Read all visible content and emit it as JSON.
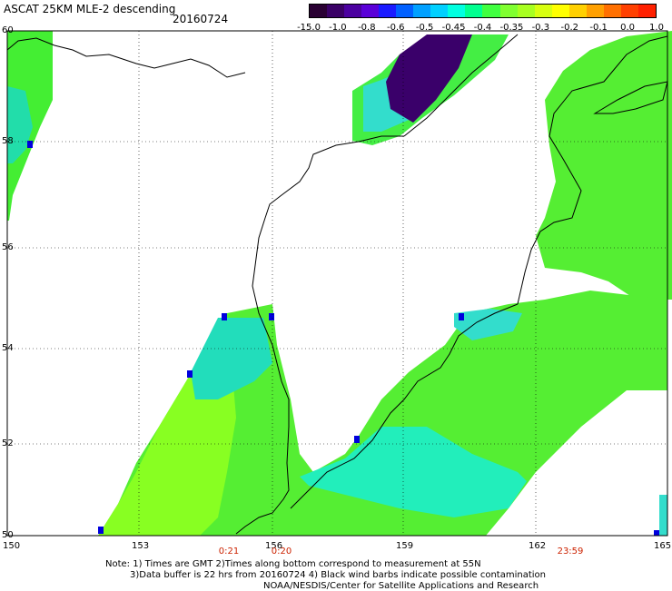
{
  "header": {
    "title": "ASCAT 25KM MLE-2 descending",
    "date": "20160724"
  },
  "colorbar": {
    "colors": [
      "#2a0033",
      "#3a0066",
      "#4b00a0",
      "#5a00d8",
      "#1a1aff",
      "#0060ff",
      "#00a0ff",
      "#00d0ff",
      "#00ffe0",
      "#00ff90",
      "#40ff40",
      "#80ff30",
      "#a8ff20",
      "#d8ff10",
      "#ffff00",
      "#ffd000",
      "#ffa000",
      "#ff7000",
      "#ff4000",
      "#ff2000"
    ],
    "labels": [
      "-15.0",
      "-1.0",
      "-0.8",
      "-0.6",
      "-0.5",
      "-0.45",
      "-0.4",
      "-0.35",
      "-0.3",
      "-0.2",
      "-0.1",
      "0.0",
      "1.0"
    ]
  },
  "axes": {
    "x_ticks": [
      "150",
      "153",
      "156",
      "159",
      "162",
      "165"
    ],
    "y_ticks": [
      "60",
      "58",
      "56",
      "54",
      "52",
      "50"
    ]
  },
  "time_labels": [
    "0:21",
    "0:20",
    "23:59"
  ],
  "notes": {
    "line1": "Note: 1) Times are GMT 2)Times along bottom correspond to measurement at 55N",
    "line2": "3)Data buffer is 22 hrs from 20160724 4) Black wind barbs indicate possible contamination",
    "line3": "NOAA/NESDIS/Center for Satellite Applications and Research"
  },
  "map_colors": {
    "green": "#33ee33",
    "lime": "#99ff22",
    "cyan": "#00ffcc",
    "blue": "#0000dd",
    "purple": "#3a0066",
    "land_line": "#000000"
  }
}
